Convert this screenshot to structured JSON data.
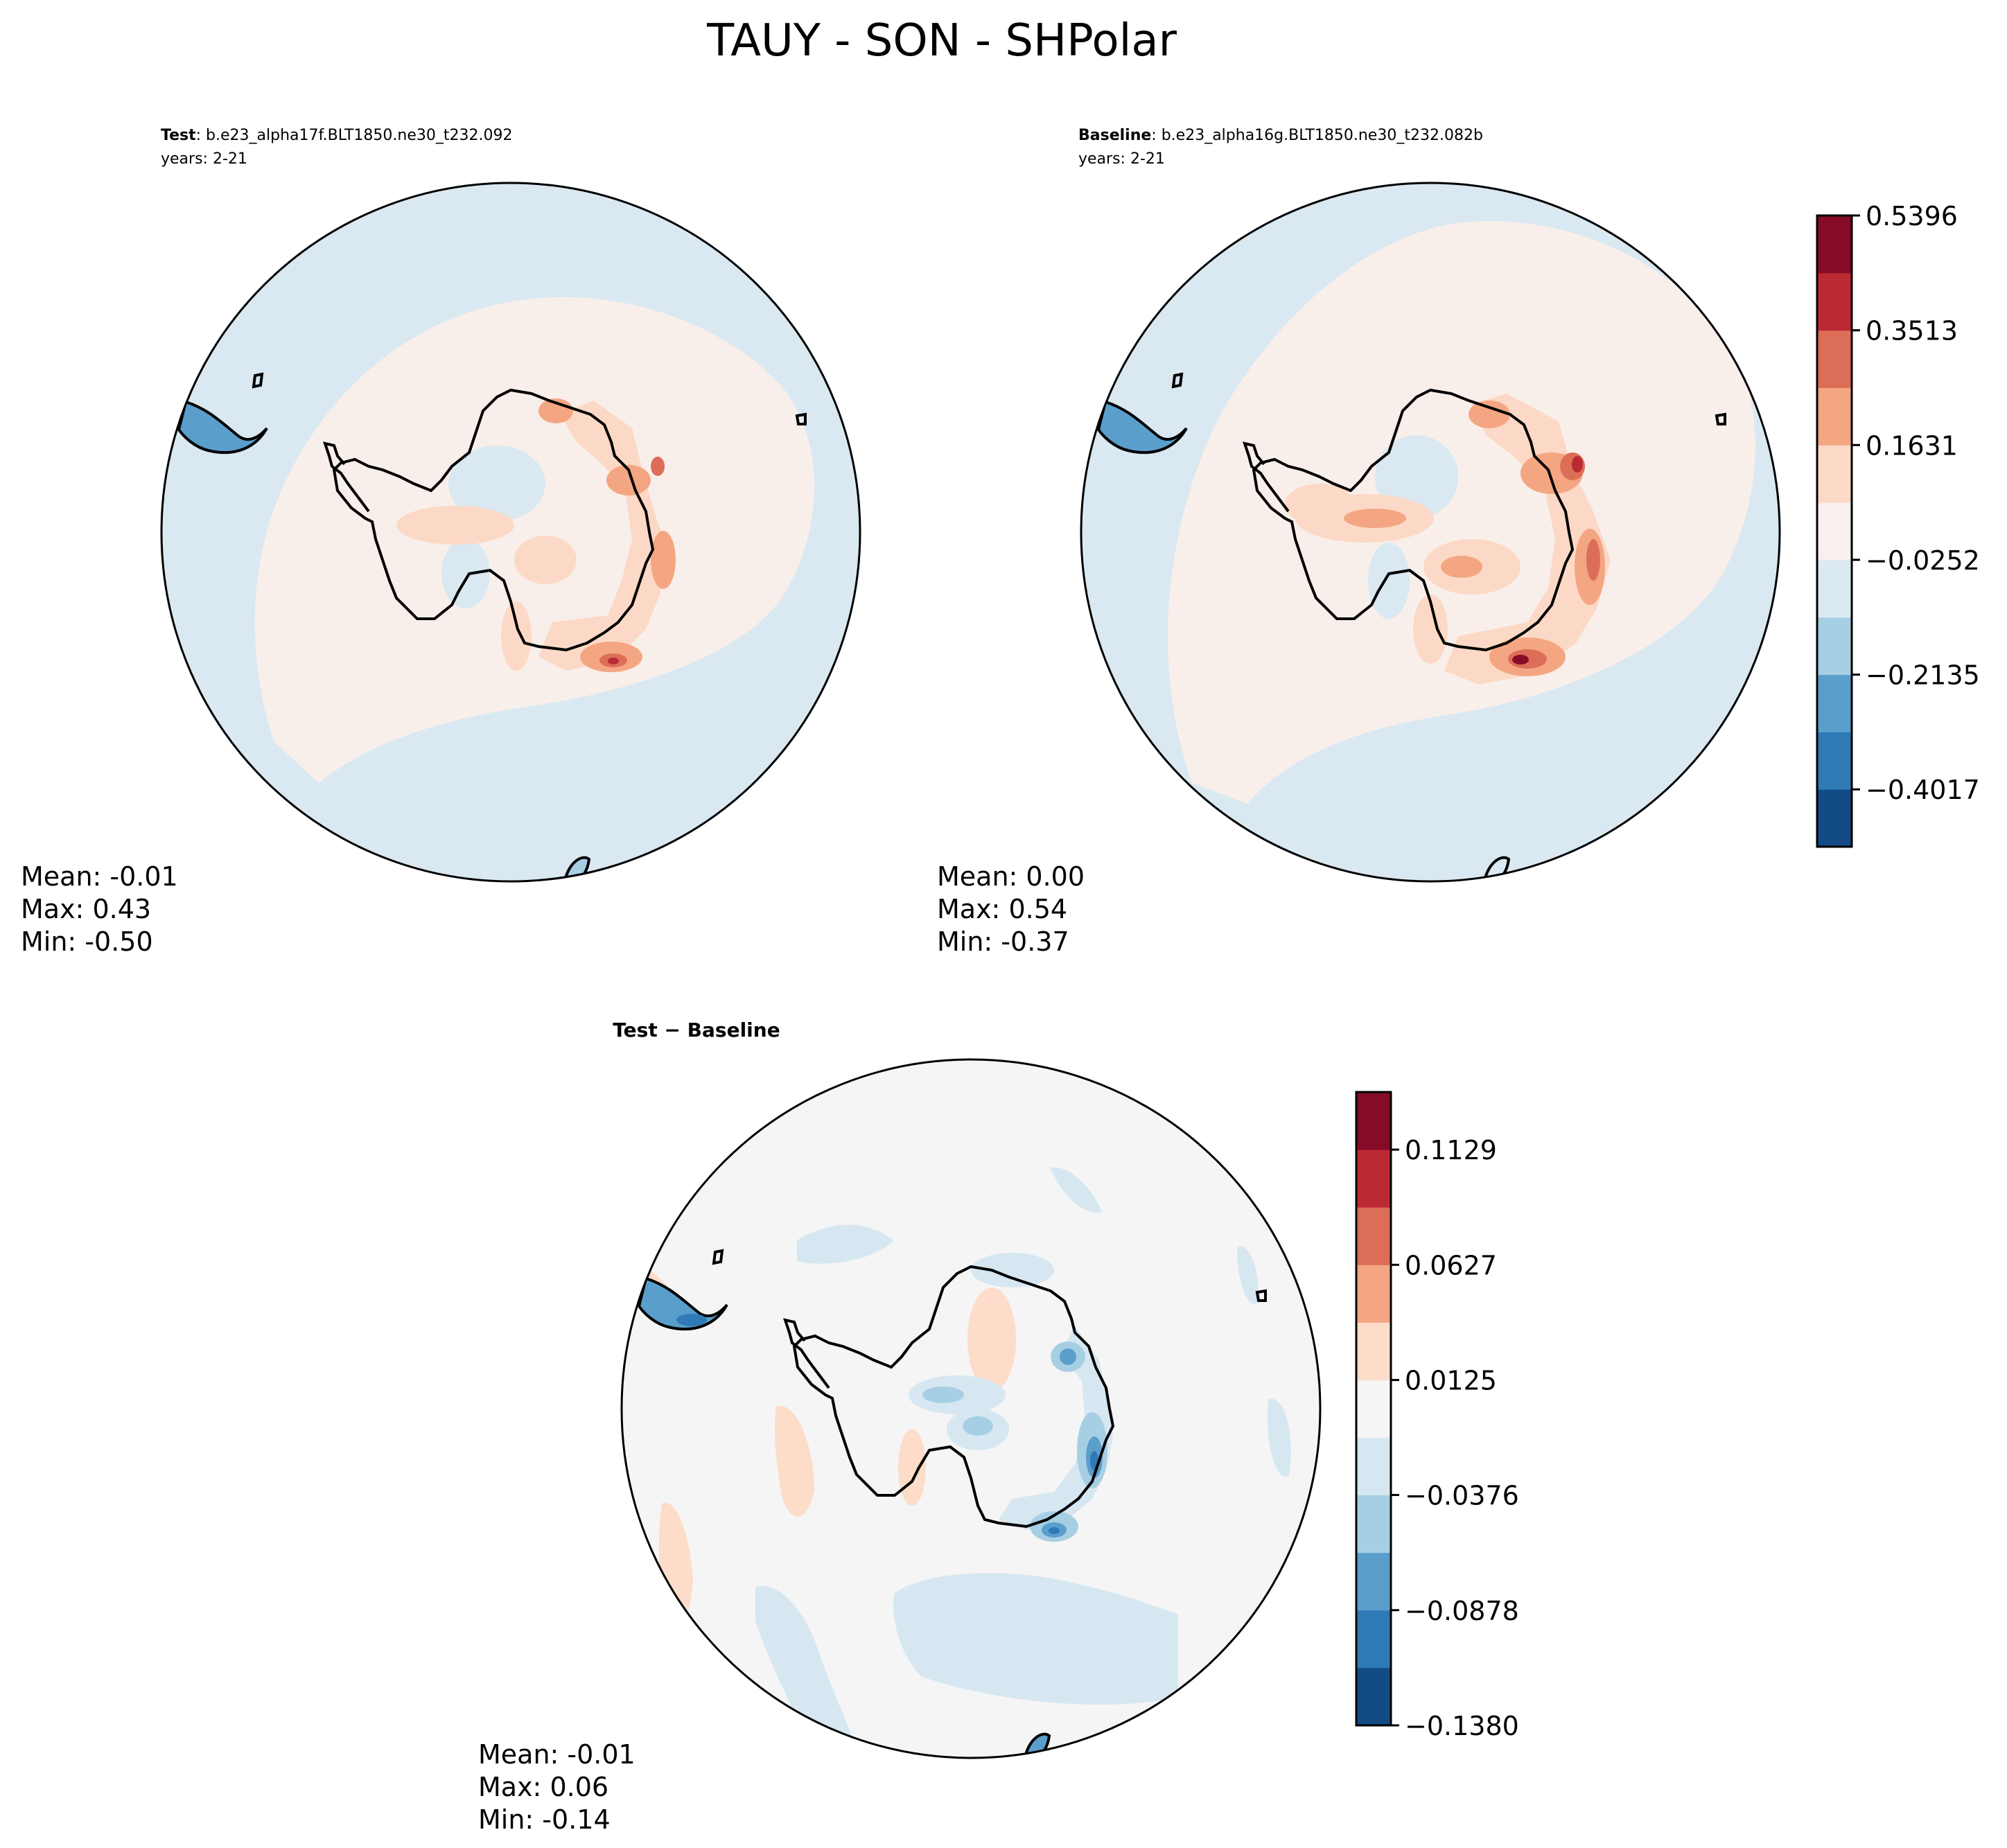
{
  "figure": {
    "suptitle": "TAUY - SON - SHPolar"
  },
  "chart_data": [
    {
      "type": "heatmap",
      "panel": "test",
      "title_bold": "Test",
      "title_rest": ": b.e23_alpha17f.BLT1850.ne30_t232.092",
      "years": "years: 2-21",
      "stats": {
        "mean": "Mean: -0.01",
        "max": "Max:  0.43",
        "min": "Min: -0.50"
      }
    },
    {
      "type": "heatmap",
      "panel": "baseline",
      "title_bold": "Baseline",
      "title_rest": ": b.e23_alpha16g.BLT1850.ne30_t232.082b",
      "years": "years: 2-21",
      "stats": {
        "mean": "Mean:  0.00",
        "max": "Max:  0.54",
        "min": "Min: -0.37"
      },
      "colorbar": {
        "levels": [
          -0.4958,
          -0.4017,
          -0.3076,
          -0.2135,
          -0.1194,
          -0.0252,
          0.0689,
          0.1631,
          0.2572,
          0.3513,
          0.4455,
          0.5396
        ],
        "tick_labels": [
          "−0.4017",
          "−0.2135",
          "−0.0252",
          "0.1631",
          "0.3513",
          "0.5396"
        ],
        "tick_values": [
          -0.4017,
          -0.2135,
          -0.0252,
          0.1631,
          0.3513,
          0.5396
        ],
        "colors": [
          "#134b87",
          "#2f79b5",
          "#5a9ecc",
          "#a7cfe4",
          "#dbeaf2",
          "#f7f0ed",
          "#fcd9c6",
          "#f4a683",
          "#dc6e58",
          "#bb2a33",
          "#850b27"
        ]
      }
    },
    {
      "type": "heatmap",
      "panel": "difference",
      "title": "Test − Baseline",
      "stats": {
        "mean": "Mean: -0.01",
        "max": "Max:  0.06",
        "min": "Min: -0.14"
      },
      "colorbar": {
        "levels": [
          -0.138,
          -0.1129,
          -0.0878,
          -0.0627,
          -0.0376,
          -0.0125,
          0.0125,
          0.0376,
          0.0627,
          0.0878,
          0.1129,
          0.138
        ],
        "tick_labels": [
          "−0.1380",
          "−0.0878",
          "−0.0376",
          "0.0125",
          "0.0627",
          "0.1129"
        ],
        "tick_values": [
          -0.138,
          -0.0878,
          -0.0376,
          0.0125,
          0.0627,
          0.1129
        ],
        "colors": [
          "#134b87",
          "#2f79b5",
          "#5a9ecc",
          "#a7cfe4",
          "#d6e7f1",
          "#f5f5f5",
          "#fddcc9",
          "#f4a683",
          "#dc6e58",
          "#bb2a33",
          "#850b27"
        ]
      }
    }
  ],
  "colors": {
    "ocean_neg": "#dae8f1",
    "ocean_pos": "#f8efeb",
    "diff_bg": "#f5f5f5",
    "pos_light": "#fcd9c6",
    "pos_mid": "#f4a683",
    "pos_strong": "#dc6e58",
    "pos_max": "#bb2a33",
    "neg_light": "#a7cfe4",
    "neg_mid": "#5a9ecc",
    "neg_strong": "#2f79b5"
  }
}
